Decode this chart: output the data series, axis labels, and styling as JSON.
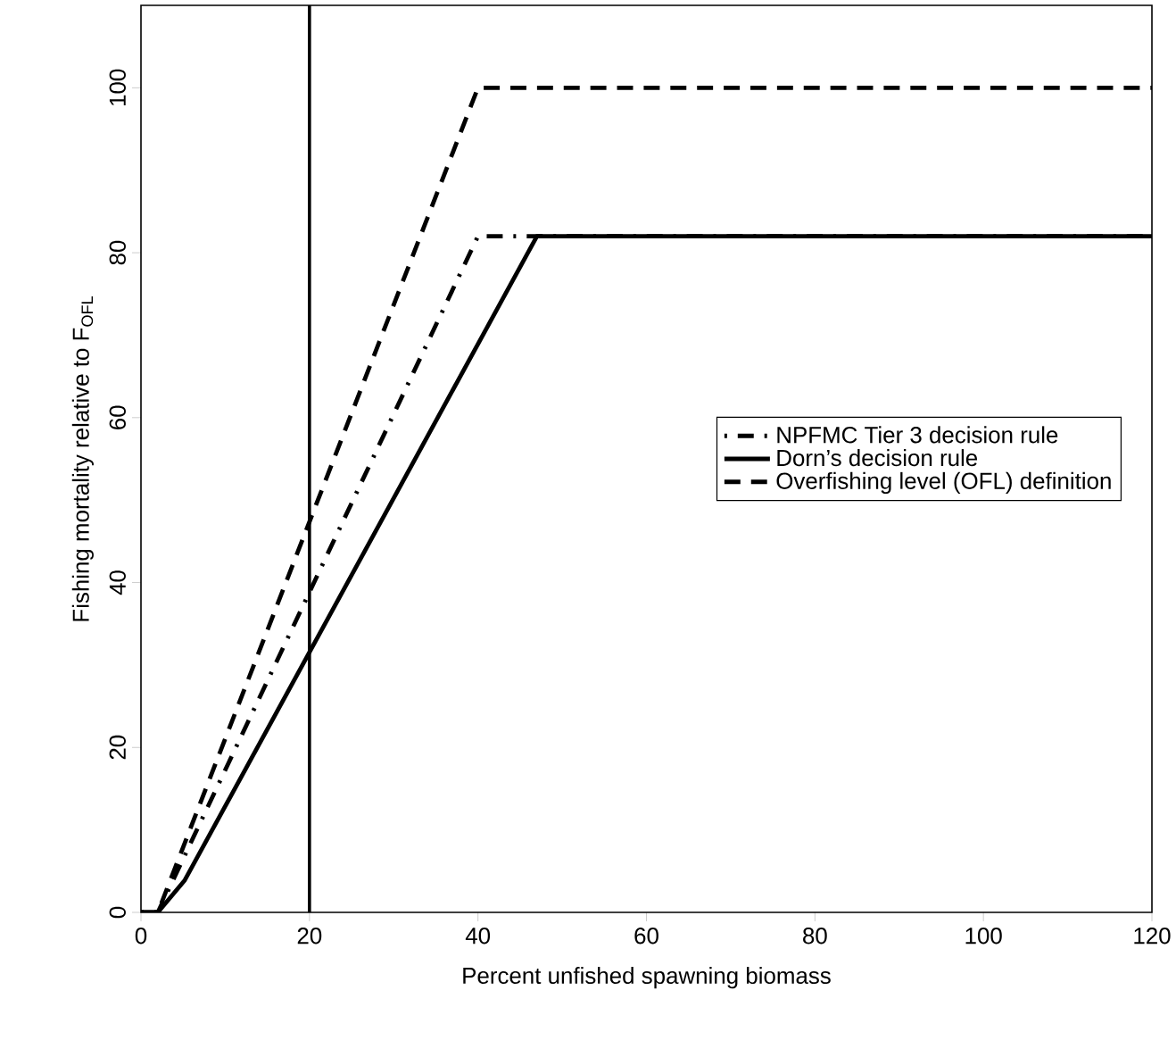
{
  "chart_data": {
    "type": "line",
    "xlabel": "Percent unfished spawning biomass",
    "ylabel": "Fishing mortality relative to  F$_{OFL}$",
    "xlim": [
      0,
      120
    ],
    "ylim": [
      0,
      110
    ],
    "xticks": [
      0,
      20,
      40,
      60,
      80,
      100,
      120
    ],
    "yticks": [
      0,
      20,
      40,
      60,
      80,
      100
    ],
    "series": [
      {
        "name": "NPFMC Tier 3 decision rule",
        "color": "#000000",
        "line_style": "dashdot",
        "x": [
          0,
          2,
          40,
          120
        ],
        "values": [
          0,
          0,
          82,
          82
        ]
      },
      {
        "name": "Dorn’s decision rule",
        "color": "#000000",
        "line_style": "solid",
        "x": [
          0,
          2,
          5.2,
          47,
          120
        ],
        "values": [
          0,
          0,
          3.9,
          82,
          82
        ]
      },
      {
        "name": "Overfishing level (OFL) definition",
        "color": "#000000",
        "line_style": "dashed",
        "x": [
          0,
          2,
          40,
          120
        ],
        "values": [
          0,
          0,
          100,
          100
        ]
      }
    ],
    "ref_lines": [
      {
        "axis": "x",
        "value": 20,
        "color": "#000000",
        "line_style": "solid"
      }
    ],
    "legend": "right",
    "grid": false,
    "marker": "none"
  }
}
